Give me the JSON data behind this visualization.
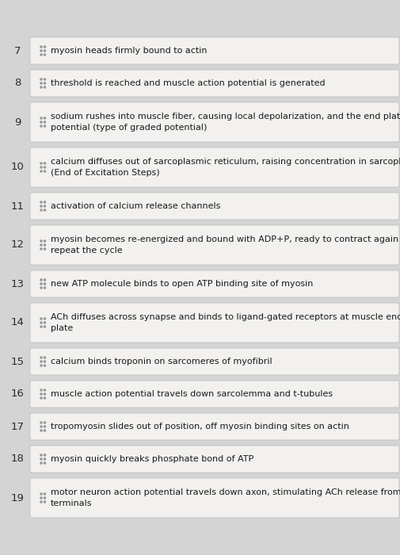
{
  "items": [
    {
      "num": "7",
      "text": "myosin heads firmly bound to actin",
      "multiline": false
    },
    {
      "num": "8",
      "text": "threshold is reached and muscle action potential is generated",
      "multiline": false
    },
    {
      "num": "9",
      "text": "sodium rushes into muscle fiber, causing local depolarization, and the end plate\npotential (type of graded potential)",
      "multiline": true
    },
    {
      "num": "10",
      "text": "calcium diffuses out of sarcoplasmic reticulum, raising concentration in sarcoplasm\n(End of Excitation Steps)",
      "multiline": true
    },
    {
      "num": "11",
      "text": "activation of calcium release channels",
      "multiline": false
    },
    {
      "num": "12",
      "text": "myosin becomes re-energized and bound with ADP+P, ready to contract again and\nrepeat the cycle",
      "multiline": true
    },
    {
      "num": "13",
      "text": "new ATP molecule binds to open ATP binding site of myosin",
      "multiline": false
    },
    {
      "num": "14",
      "text": "ACh diffuses across synapse and binds to ligand-gated receptors at muscle end\nplate",
      "multiline": true
    },
    {
      "num": "15",
      "text": "calcium binds troponin on sarcomeres of myofibril",
      "multiline": false
    },
    {
      "num": "16",
      "text": "muscle action potential travels down sarcolemma and t-tubules",
      "multiline": false
    },
    {
      "num": "17",
      "text": "tropomyosin slides out of position, off myosin binding sites on actin",
      "multiline": false
    },
    {
      "num": "18",
      "text": "myosin quickly breaks phosphate bond of ATP",
      "multiline": false
    },
    {
      "num": "19",
      "text": "motor neuron action potential travels down axon, stimulating ACh release from\nterminals",
      "multiline": true
    }
  ],
  "bg_color": "#d4d4d4",
  "card_bg_color": "#f2f1ef",
  "card_border_color": "#c0bfbd",
  "text_color": "#1a1a1a",
  "num_color": "#2a2a2a",
  "drag_icon_color": "#999999",
  "font_size": 8.0,
  "num_font_size": 9.5
}
